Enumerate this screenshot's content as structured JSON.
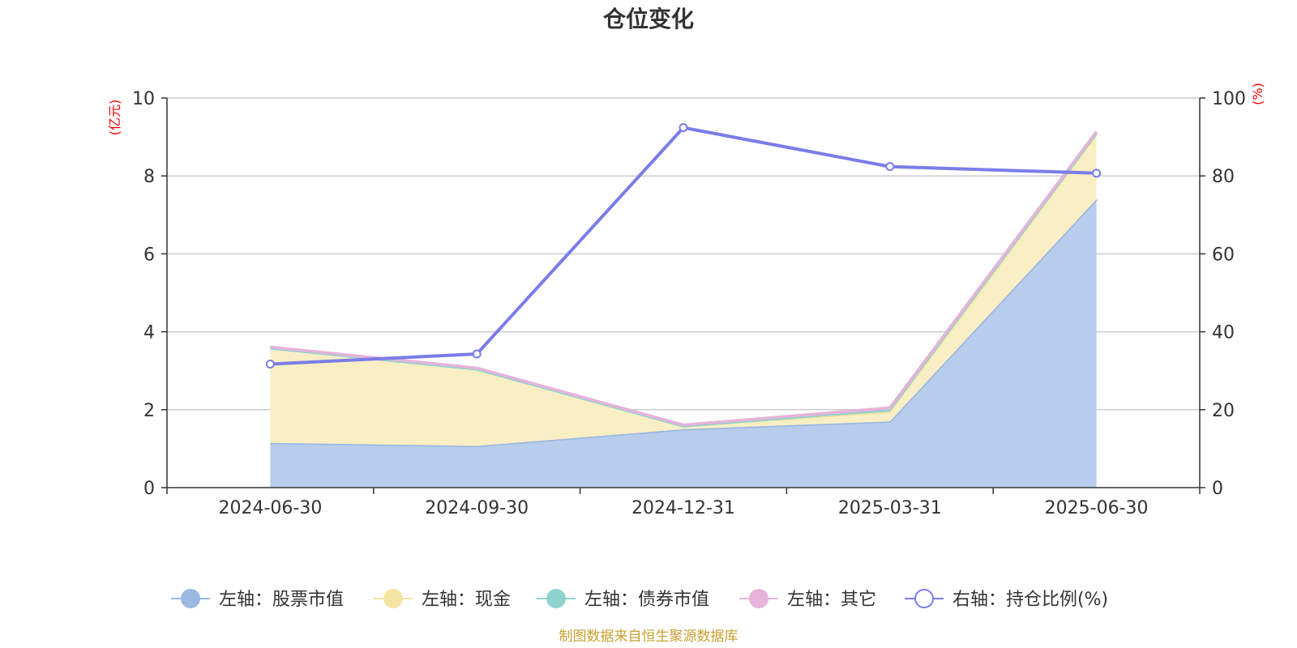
{
  "chart_data": {
    "type": "area",
    "title": "仓位变化",
    "categories": [
      "2024-06-30",
      "2024-09-30",
      "2024-12-31",
      "2025-03-31",
      "2025-06-30"
    ],
    "left_axis": {
      "unit": "(亿元)",
      "ylim": [
        0,
        10
      ],
      "ticks": [
        0,
        2,
        4,
        6,
        8,
        10
      ]
    },
    "right_axis": {
      "unit": "(%)",
      "ylim": [
        0,
        100
      ],
      "ticks": [
        0,
        20,
        40,
        60,
        80,
        100
      ]
    },
    "stacked": true,
    "series": [
      {
        "name": "左轴：股票市值",
        "axis": "left",
        "kind": "area",
        "values": [
          1.15,
          1.07,
          1.5,
          1.7,
          7.4
        ]
      },
      {
        "name": "左轴：现金",
        "axis": "left",
        "kind": "area",
        "values": [
          2.43,
          1.97,
          0.08,
          0.25,
          1.67
        ]
      },
      {
        "name": "左轴：债券市值",
        "axis": "left",
        "kind": "area",
        "values": [
          0.0,
          0.0,
          0.0,
          0.05,
          0.03
        ]
      },
      {
        "name": "左轴：其它",
        "axis": "left",
        "kind": "area",
        "values": [
          0.03,
          0.03,
          0.03,
          0.05,
          0.04
        ]
      },
      {
        "name": "右轴：持仓比例(%)",
        "axis": "right",
        "kind": "line",
        "values": [
          31.7,
          34.3,
          92.4,
          82.4,
          80.7
        ]
      }
    ],
    "grid": true,
    "legend_position": "bottom"
  },
  "colors": {
    "stock": "#9bb8e3",
    "stock_fill": "#b8cdeb",
    "cash": "#f5e4a1",
    "cash_fill": "#faefc4",
    "bond": "#8fd3cf",
    "other": "#e6b3da",
    "ratio": "#7a7de8",
    "unit": "#ff0000",
    "footer": "#c8a032"
  },
  "footer": "制图数据来自恒生聚源数据库"
}
